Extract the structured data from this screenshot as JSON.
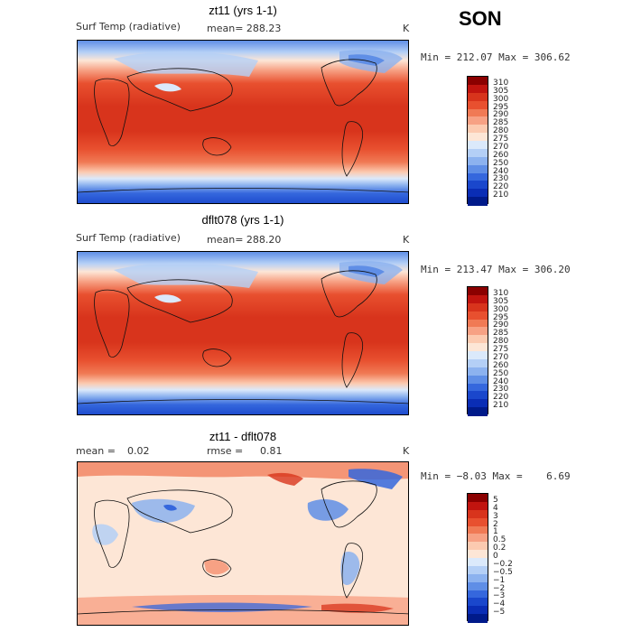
{
  "season": "SON",
  "panels": [
    {
      "title": "zt11 (yrs 1-1)",
      "subtitle_left": "Surf Temp (radiative)",
      "subtitle_mid": "mean= 288.23",
      "units": "K",
      "minmax": "Min = 212.07 Max = 306.62",
      "colorbar": {
        "labels": [
          "310",
          "305",
          "300",
          "295",
          "290",
          "285",
          "280",
          "275",
          "270",
          "260",
          "250",
          "240",
          "230",
          "220",
          "210"
        ],
        "colors": [
          "#8b0000",
          "#c1140f",
          "#d8341c",
          "#e8502f",
          "#f07a55",
          "#f7a184",
          "#fccab0",
          "#fde6d6",
          "#dbe9fb",
          "#b4cff6",
          "#8cb2ef",
          "#5f8ee6",
          "#3567dd",
          "#1a47cc",
          "#0a2db5",
          "#001a8a"
        ]
      }
    },
    {
      "title": "dflt078 (yrs 1-1)",
      "subtitle_left": "Surf Temp (radiative)",
      "subtitle_mid": "mean= 288.20",
      "units": "K",
      "minmax": "Min = 213.47 Max = 306.20",
      "colorbar": {
        "labels": [
          "310",
          "305",
          "300",
          "295",
          "290",
          "285",
          "280",
          "275",
          "270",
          "260",
          "250",
          "240",
          "230",
          "220",
          "210"
        ],
        "colors": [
          "#8b0000",
          "#c1140f",
          "#d8341c",
          "#e8502f",
          "#f07a55",
          "#f7a184",
          "#fccab0",
          "#fde6d6",
          "#dbe9fb",
          "#b4cff6",
          "#8cb2ef",
          "#5f8ee6",
          "#3567dd",
          "#1a47cc",
          "#0a2db5",
          "#001a8a"
        ]
      }
    },
    {
      "title": "zt11 - dflt078",
      "subtitle_left": "mean =",
      "subtitle_left_val": "0.02",
      "subtitle_mid": "rmse =",
      "subtitle_mid_val": "0.81",
      "units": "K",
      "minmax": "Min = −8.03 Max =    6.69",
      "colorbar": {
        "labels": [
          "5",
          "4",
          "3",
          "2",
          "1",
          "0.5",
          "0.2",
          "0",
          "−0.2",
          "−0.5",
          "−1",
          "−2",
          "−3",
          "−4",
          "−5"
        ],
        "colors": [
          "#8b0000",
          "#c1140f",
          "#d8341c",
          "#e8502f",
          "#f07a55",
          "#f7a184",
          "#fccab0",
          "#fde6d6",
          "#dbe9fb",
          "#b4cff6",
          "#8cb2ef",
          "#5f8ee6",
          "#3567dd",
          "#1a47cc",
          "#0a2db5",
          "#001a8a"
        ]
      }
    }
  ]
}
